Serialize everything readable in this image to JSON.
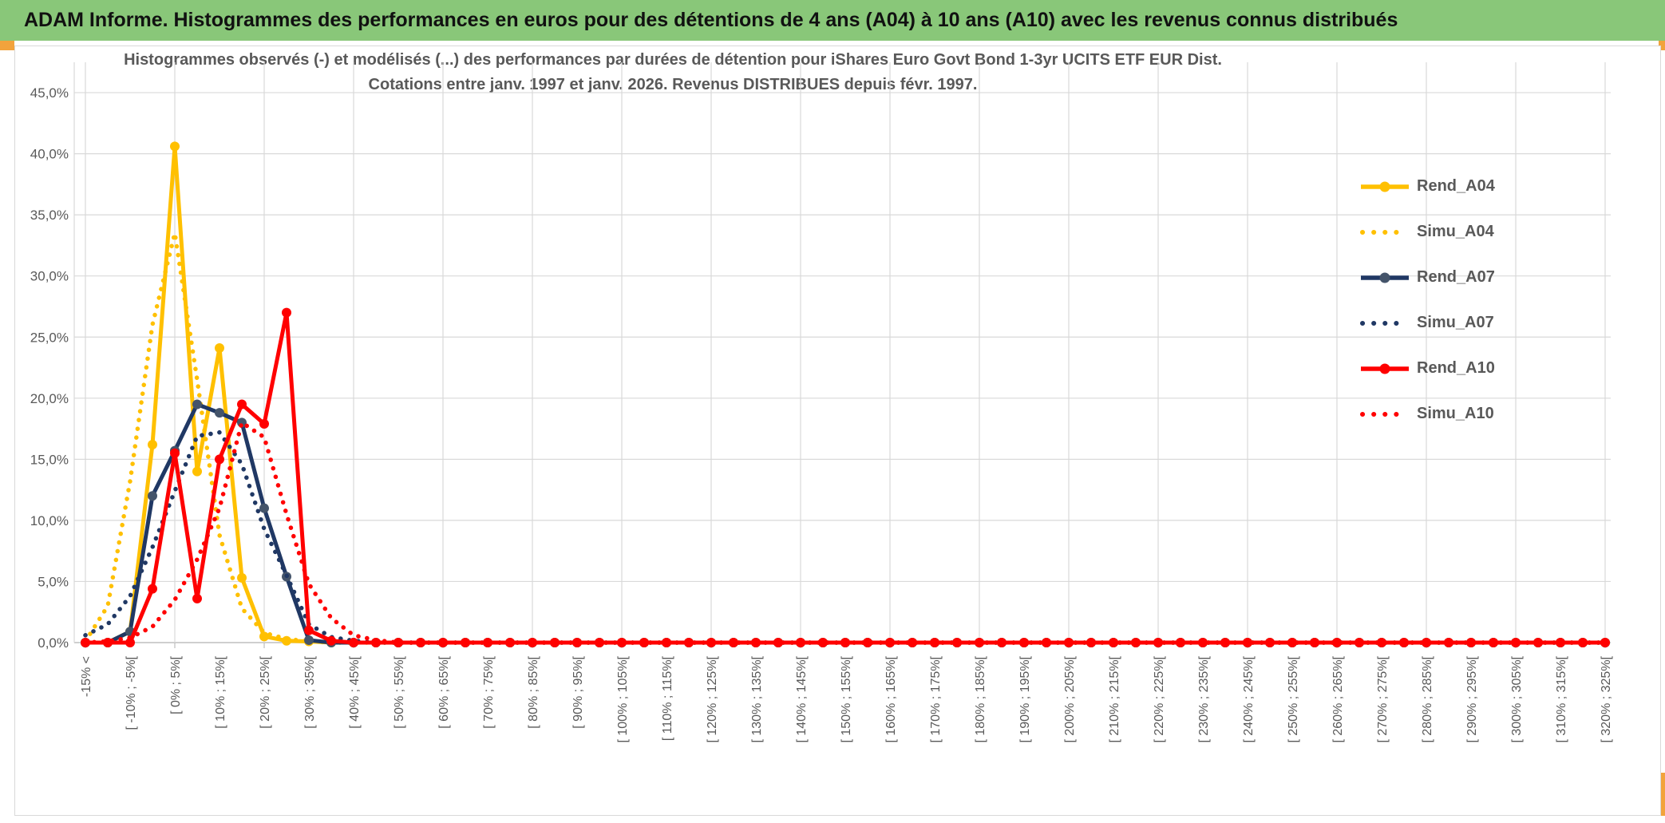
{
  "header": {
    "title": "ADAM Informe. Histogrammes des performances en euros pour des détentions de 4 ans (A04) à 10 ans (A10) avec les revenus connus distribués"
  },
  "colors": {
    "header_green": "#89c779",
    "accent_gold_cell": "#f2a33c",
    "series_gold": "#FFC000",
    "series_navy": "#203864",
    "navy_marker": "#44546A",
    "series_red": "#FF0000",
    "grid": "#d9d9d9",
    "axis_line": "#bfbfbf",
    "text_gray": "#595959"
  },
  "chart_data": {
    "type": "line",
    "title_line1": "Histogrammes observés (-) et modélisés (...) des performances par durées de détention pour iShares Euro Govt Bond 1-3yr UCITS ETF EUR Dist.",
    "title_line2": "Cotations entre janv. 1997 et janv. 2026. Revenus DISTRIBUES depuis févr. 1997.",
    "grid": true,
    "legend_position": "right",
    "n_bins": 69,
    "bin_width_pct": 5,
    "first_bin": "< -15%",
    "last_bin": "[ 320% ; 325%[",
    "ylim": [
      0,
      45
    ],
    "y_tick_step": 5,
    "y_tick_labels": [
      "0,0%",
      "5,0%",
      "10,0%",
      "15,0%",
      "20,0%",
      "25,0%",
      "30,0%",
      "35,0%",
      "40,0%",
      "45,0%"
    ],
    "x_tick_labels": [
      "-15% <",
      "[ -10% ; -5%[",
      "[ 0% ; 5%[",
      "[ 10% ; 15%[",
      "[ 20% ; 25%[",
      "[ 30% ; 35%[",
      "[ 40% ; 45%[",
      "[ 50% ; 55%[",
      "[ 60% ; 65%[",
      "[ 70% ; 75%[",
      "[ 80% ; 85%[",
      "[ 90% ; 95%[",
      "[ 100% ; 105%[",
      "[ 110% ; 115%[",
      "[ 120% ; 125%[",
      "[ 130% ; 135%[",
      "[ 140% ; 145%[",
      "[ 150% ; 155%[",
      "[ 160% ; 165%[",
      "[ 170% ; 175%[",
      "[ 180% ; 185%[",
      "[ 190% ; 195%[",
      "[ 200% ; 205%[",
      "[ 210% ; 215%[",
      "[ 220% ; 225%[",
      "[ 230% ; 235%[",
      "[ 240% ; 245%[",
      "[ 250% ; 255%[",
      "[ 260% ; 265%[",
      "[ 270% ; 275%[",
      "[ 280% ; 285%[",
      "[ 290% ; 295%[",
      "[ 300% ; 305%[",
      "[ 310% ; 315%[",
      "[ 320% ; 325%["
    ],
    "series": [
      {
        "name": "Rend_A04",
        "style": "solid",
        "color": "#FFC000",
        "marker_color": "#FFC000",
        "values": [
          0,
          0,
          0.9,
          16.2,
          40.6,
          14.0,
          24.1,
          5.3,
          0.5,
          0.15,
          0.1
        ]
      },
      {
        "name": "Simu_A04",
        "style": "dotted",
        "color": "#FFC000",
        "values": [
          0.1,
          3.0,
          13.2,
          26.0,
          33.5,
          21.5,
          8.8,
          2.8,
          0.8,
          0.3,
          0.1
        ]
      },
      {
        "name": "Rend_A07",
        "style": "solid",
        "color": "#203864",
        "marker_color": "#44546A",
        "values": [
          0,
          0,
          0.9,
          12.0,
          15.7,
          19.5,
          18.8,
          18.0,
          11.0,
          5.4,
          0.2
        ]
      },
      {
        "name": "Simu_A07",
        "style": "dotted",
        "color": "#203864",
        "values": [
          0.6,
          1.5,
          3.8,
          7.8,
          12.4,
          16.9,
          17.2,
          14.6,
          9.3,
          5.5,
          1.5,
          0.45,
          0.15
        ]
      },
      {
        "name": "Rend_A10",
        "style": "solid",
        "color": "#FF0000",
        "marker_color": "#FF0000",
        "values": [
          0,
          0,
          0,
          4.4,
          15.5,
          3.6,
          15.0,
          19.5,
          17.9,
          27.0,
          1.0,
          0.15
        ]
      },
      {
        "name": "Simu_A10",
        "style": "dotted",
        "color": "#FF0000",
        "values": [
          0,
          0.1,
          0.4,
          1.3,
          3.5,
          6.8,
          11.0,
          18.0,
          16.8,
          10.5,
          4.8,
          2.0,
          0.6,
          0.2
        ]
      }
    ]
  }
}
